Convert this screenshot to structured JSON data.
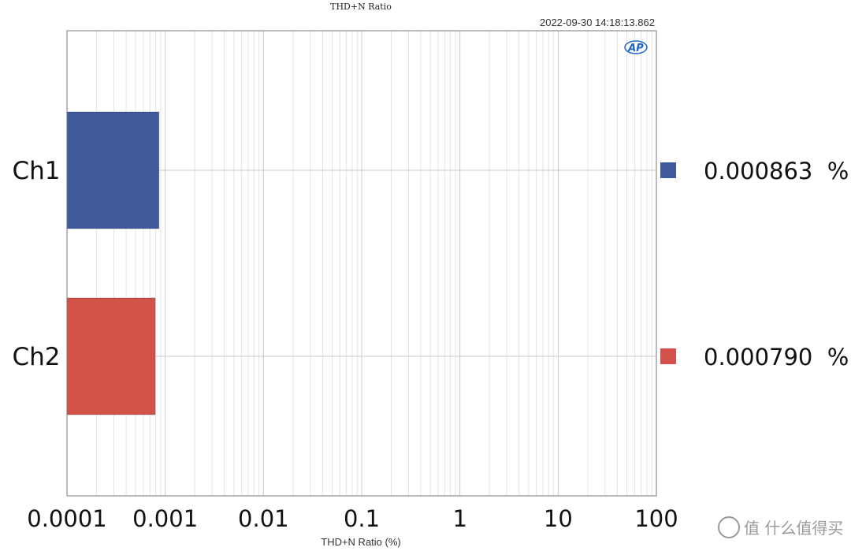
{
  "chart_data": {
    "type": "bar",
    "orientation": "horizontal",
    "title": "THD+N Ratio",
    "timestamp": "2022-09-30 14:18:13.862",
    "categories": [
      "Ch1",
      "Ch2"
    ],
    "values": [
      0.000863,
      0.00079
    ],
    "value_labels": [
      "0.000863  %",
      "0.000790  %"
    ],
    "colors": [
      "#3f5a9a",
      "#d2524a"
    ],
    "xlabel": "THD+N Ratio (%)",
    "ylabel": "",
    "xscale": "log",
    "xlim": [
      0.0001,
      100
    ],
    "xticks": [
      0.0001,
      0.001,
      0.01,
      0.1,
      1,
      10,
      100
    ],
    "xtick_labels": [
      "0.0001",
      "0.001",
      "0.01",
      "0.1",
      "1",
      "10",
      "100"
    ],
    "grid": true,
    "legend_placement": "right"
  },
  "logo": {
    "text": "AP",
    "color": "#1e66c8"
  },
  "watermark": {
    "text": "值 什么值得买",
    "color": "#9a9a9a"
  }
}
